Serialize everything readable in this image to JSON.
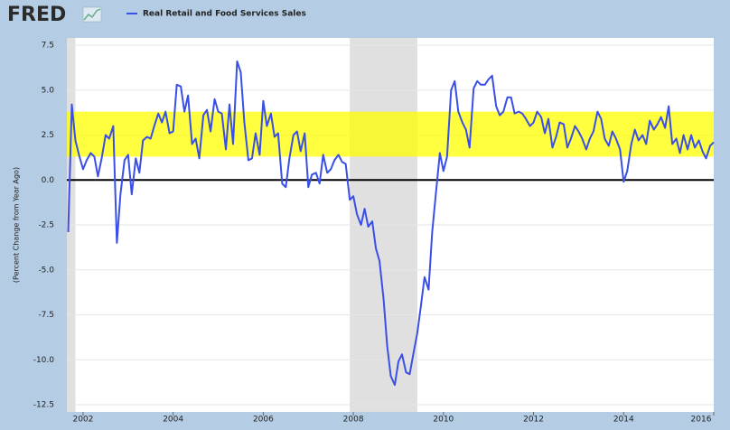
{
  "chart_data": {
    "type": "line",
    "logo": "FRED",
    "y_label": "(Percent Change from Year Ago)",
    "x": [
      2001.67,
      2001.75,
      2001.83,
      2001.92,
      2002,
      2002.08,
      2002.17,
      2002.25,
      2002.33,
      2002.42,
      2002.5,
      2002.58,
      2002.67,
      2002.75,
      2002.83,
      2002.92,
      2003,
      2003.08,
      2003.17,
      2003.25,
      2003.33,
      2003.42,
      2003.5,
      2003.58,
      2003.67,
      2003.75,
      2003.83,
      2003.92,
      2004,
      2004.08,
      2004.17,
      2004.25,
      2004.33,
      2004.42,
      2004.5,
      2004.58,
      2004.67,
      2004.75,
      2004.83,
      2004.92,
      2005,
      2005.08,
      2005.17,
      2005.25,
      2005.33,
      2005.42,
      2005.5,
      2005.58,
      2005.67,
      2005.75,
      2005.83,
      2005.92,
      2006,
      2006.08,
      2006.17,
      2006.25,
      2006.33,
      2006.42,
      2006.5,
      2006.58,
      2006.67,
      2006.75,
      2006.83,
      2006.92,
      2007,
      2007.08,
      2007.17,
      2007.25,
      2007.33,
      2007.42,
      2007.5,
      2007.58,
      2007.67,
      2007.75,
      2007.83,
      2007.92,
      2008,
      2008.08,
      2008.17,
      2008.25,
      2008.33,
      2008.42,
      2008.5,
      2008.58,
      2008.67,
      2008.75,
      2008.83,
      2008.92,
      2009,
      2009.08,
      2009.17,
      2009.25,
      2009.33,
      2009.42,
      2009.5,
      2009.58,
      2009.67,
      2009.75,
      2009.83,
      2009.92,
      2010,
      2010.08,
      2010.17,
      2010.25,
      2010.33,
      2010.42,
      2010.5,
      2010.58,
      2010.67,
      2010.75,
      2010.83,
      2010.92,
      2011,
      2011.08,
      2011.17,
      2011.25,
      2011.33,
      2011.42,
      2011.5,
      2011.58,
      2011.67,
      2011.75,
      2011.83,
      2011.92,
      2012,
      2012.08,
      2012.17,
      2012.25,
      2012.33,
      2012.42,
      2012.5,
      2012.58,
      2012.67,
      2012.75,
      2012.83,
      2012.92,
      2013,
      2013.08,
      2013.17,
      2013.25,
      2013.33,
      2013.42,
      2013.5,
      2013.58,
      2013.67,
      2013.75,
      2013.83,
      2013.92,
      2014,
      2014.08,
      2014.17,
      2014.25,
      2014.33,
      2014.42,
      2014.5,
      2014.58,
      2014.67,
      2014.75,
      2014.83,
      2014.92,
      2015,
      2015.08,
      2015.17,
      2015.25,
      2015.33,
      2015.42,
      2015.5,
      2015.58,
      2015.67,
      2015.75,
      2015.83,
      2015.92,
      2016
    ],
    "series": [
      {
        "name": "Real Retail and Food Services Sales",
        "color": "#3a4fe8",
        "values": [
          -2.9,
          4.2,
          2.2,
          1.3,
          0.6,
          1.1,
          1.5,
          1.3,
          0.2,
          1.3,
          2.5,
          2.3,
          3.0,
          -3.5,
          -0.8,
          1.1,
          1.4,
          -0.8,
          1.2,
          0.4,
          2.2,
          2.4,
          2.3,
          3.0,
          3.7,
          3.2,
          3.8,
          2.6,
          2.7,
          5.3,
          5.2,
          3.8,
          4.7,
          2.0,
          2.3,
          1.2,
          3.6,
          3.9,
          2.7,
          4.5,
          3.8,
          3.7,
          1.7,
          4.2,
          2.0,
          6.6,
          6.0,
          3.2,
          1.1,
          1.2,
          2.6,
          1.4,
          4.4,
          3.0,
          3.7,
          2.4,
          2.6,
          -0.2,
          -0.4,
          1.2,
          2.5,
          2.7,
          1.6,
          2.6,
          -0.4,
          0.3,
          0.4,
          -0.2,
          1.4,
          0.4,
          0.6,
          1.1,
          1.4,
          1.0,
          0.9,
          -1.1,
          -0.9,
          -1.9,
          -2.5,
          -1.6,
          -2.6,
          -2.3,
          -3.8,
          -4.5,
          -6.6,
          -9.2,
          -10.9,
          -11.4,
          -10.1,
          -9.7,
          -10.7,
          -10.8,
          -9.7,
          -8.5,
          -7.0,
          -5.4,
          -6.1,
          -2.9,
          -0.8,
          1.5,
          0.5,
          1.3,
          5.0,
          5.5,
          3.8,
          3.2,
          2.8,
          1.8,
          5.1,
          5.5,
          5.3,
          5.3,
          5.6,
          5.8,
          4.1,
          3.6,
          3.8,
          4.6,
          4.6,
          3.7,
          3.8,
          3.7,
          3.4,
          3.0,
          3.2,
          3.8,
          3.5,
          2.6,
          3.4,
          1.8,
          2.4,
          3.2,
          3.1,
          1.8,
          2.3,
          3.0,
          2.7,
          2.3,
          1.7,
          2.3,
          2.7,
          3.8,
          3.4,
          2.3,
          1.9,
          2.7,
          2.3,
          1.7,
          -0.1,
          0.5,
          2.0,
          2.8,
          2.2,
          2.5,
          2.0,
          3.3,
          2.8,
          3.1,
          3.5,
          2.9,
          4.1,
          2.0,
          2.3,
          1.5,
          2.5,
          1.7,
          2.5,
          1.8,
          2.2,
          1.6,
          1.2,
          1.9,
          2.1
        ]
      }
    ],
    "xlim": [
      2001.64,
      2016.0
    ],
    "xticks": [
      2002,
      2004,
      2006,
      2008,
      2010,
      2012,
      2014,
      2016
    ],
    "ylim": [
      -12.5,
      7.5
    ],
    "yticks": [
      7.5,
      {
        "value": 5,
        "label": "5.0"
      },
      2.5,
      {
        "value": 0,
        "label": "0.0"
      },
      -2.5,
      {
        "value": -5,
        "label": "-5.0"
      },
      -7.5,
      {
        "value": -10,
        "label": "-10.0"
      },
      -12.5
    ],
    "recessions": [
      [
        2001.17,
        2001.83
      ],
      [
        2007.92,
        2009.42
      ]
    ],
    "band": [
      1.3,
      3.8
    ],
    "band_color": "#ffff00",
    "grid": true
  }
}
